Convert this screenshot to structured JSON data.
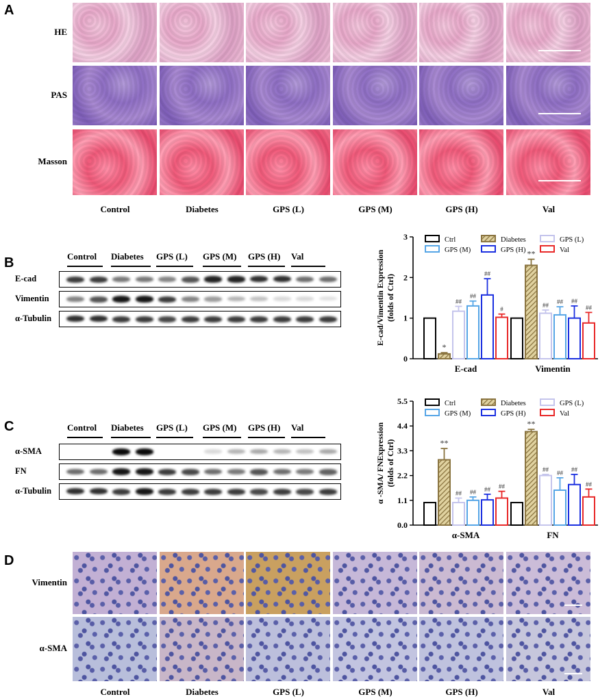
{
  "panels": {
    "A": {
      "letter": "A",
      "rows": [
        "HE",
        "PAS",
        "Masson"
      ],
      "columns": [
        "Control",
        "Diabetes",
        "GPS (L)",
        "GPS (M)",
        "GPS (H)",
        "Val"
      ]
    },
    "B": {
      "letter": "B",
      "groups": [
        "Control",
        "Diabetes",
        "GPS (L)",
        "GPS (M)",
        "GPS (H)",
        "Val"
      ],
      "rows": [
        "E-cad",
        "Vimentin",
        "α-Tubulin"
      ]
    },
    "C": {
      "letter": "C",
      "groups": [
        "Control",
        "Diabetes",
        "GPS (L)",
        "GPS (M)",
        "GPS (H)",
        "Val"
      ],
      "rows": [
        "α-SMA",
        "FN",
        "α-Tubulin"
      ]
    },
    "D": {
      "letter": "D",
      "rows": [
        "Vimentin",
        "α-SMA"
      ],
      "columns": [
        "Control",
        "Diabetes",
        "GPS (L)",
        "GPS (M)",
        "GPS (H)",
        "Val"
      ]
    }
  },
  "colors": {
    "ctrl": "#000000",
    "diabetes": "#8a7440",
    "gps_l": "#c4c4ec",
    "gps_m": "#55a5e6",
    "gps_h": "#1a2fe0",
    "val": "#e82828"
  },
  "chart_data": [
    {
      "type": "bar",
      "ylabel": "E-cad/Vimentin Expression (folds of Ctrl)",
      "ylim": [
        0,
        3
      ],
      "yticks": [
        "0",
        "1",
        "2",
        "3"
      ],
      "categories": [
        "E-cad",
        "Vimentin"
      ],
      "legend": [
        "Ctrl",
        "Diabetes",
        "GPS (L)",
        "GPS (M)",
        "GPS (H)",
        "Val"
      ],
      "series": [
        {
          "name": "Ctrl",
          "values": [
            1.0,
            1.0
          ],
          "errors": [
            0,
            0
          ],
          "labels": [
            "",
            ""
          ]
        },
        {
          "name": "Diabetes",
          "values": [
            0.12,
            2.3
          ],
          "errors": [
            0.03,
            0.15
          ],
          "labels": [
            "*",
            "**"
          ]
        },
        {
          "name": "GPS (L)",
          "values": [
            1.17,
            1.12
          ],
          "errors": [
            0.12,
            0.08
          ],
          "labels": [
            "##",
            "##"
          ]
        },
        {
          "name": "GPS (M)",
          "values": [
            1.3,
            1.08
          ],
          "errors": [
            0.12,
            0.2
          ],
          "labels": [
            "##",
            "##"
          ]
        },
        {
          "name": "GPS (H)",
          "values": [
            1.57,
            1.0
          ],
          "errors": [
            0.4,
            0.3
          ],
          "labels": [
            "##",
            "##"
          ]
        },
        {
          "name": "Val",
          "values": [
            1.02,
            0.88
          ],
          "errors": [
            0.08,
            0.26
          ],
          "labels": [
            "#",
            "##"
          ]
        }
      ]
    },
    {
      "type": "bar",
      "ylabel": "α -SMA/ FNExpression (folds of Ctrl)",
      "ylim": [
        0,
        5.5
      ],
      "yticks": [
        "0.0",
        "1.1",
        "2.2",
        "3.3",
        "4.4",
        "5.5"
      ],
      "categories": [
        "α-SMA",
        "FN"
      ],
      "legend": [
        "Ctrl",
        "Diabetes",
        "GPS (L)",
        "GPS (M)",
        "GPS (H)",
        "Val"
      ],
      "series": [
        {
          "name": "Ctrl",
          "values": [
            1.0,
            1.0
          ],
          "errors": [
            0,
            0
          ],
          "labels": [
            "",
            ""
          ]
        },
        {
          "name": "Diabetes",
          "values": [
            2.9,
            4.15
          ],
          "errors": [
            0.5,
            0.1
          ],
          "labels": [
            "**",
            "**"
          ]
        },
        {
          "name": "GPS (L)",
          "values": [
            1.0,
            2.2
          ],
          "errors": [
            0.2,
            0.05
          ],
          "labels": [
            "##",
            "##"
          ]
        },
        {
          "name": "GPS (M)",
          "values": [
            1.1,
            1.55
          ],
          "errors": [
            0.15,
            0.55
          ],
          "labels": [
            "##",
            "##"
          ]
        },
        {
          "name": "GPS (H)",
          "values": [
            1.12,
            1.8
          ],
          "errors": [
            0.25,
            0.45
          ],
          "labels": [
            "##",
            "##"
          ]
        },
        {
          "name": "Val",
          "values": [
            1.2,
            1.25
          ],
          "errors": [
            0.3,
            0.35
          ],
          "labels": [
            "##",
            "##"
          ]
        }
      ]
    }
  ]
}
